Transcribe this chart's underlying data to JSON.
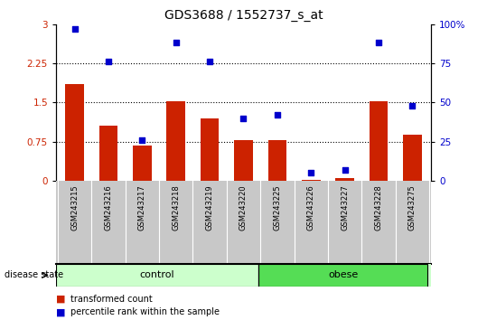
{
  "title": "GDS3688 / 1552737_s_at",
  "samples": [
    "GSM243215",
    "GSM243216",
    "GSM243217",
    "GSM243218",
    "GSM243219",
    "GSM243220",
    "GSM243225",
    "GSM243226",
    "GSM243227",
    "GSM243228",
    "GSM243275"
  ],
  "transformed_count": [
    1.85,
    1.05,
    0.68,
    1.52,
    1.2,
    0.78,
    0.78,
    0.02,
    0.05,
    1.52,
    0.88
  ],
  "percentile_rank": [
    97,
    76,
    26,
    88,
    76,
    40,
    42,
    5,
    7,
    88,
    48
  ],
  "bar_color": "#cc2200",
  "dot_color": "#0000cc",
  "ylim_left": [
    0,
    3
  ],
  "ylim_right": [
    0,
    100
  ],
  "yticks_left": [
    0,
    0.75,
    1.5,
    2.25,
    3
  ],
  "yticks_right": [
    0,
    25,
    50,
    75,
    100
  ],
  "ytick_labels_left": [
    "0",
    "0.75",
    "1.5",
    "2.25",
    "3"
  ],
  "ytick_labels_right": [
    "0",
    "25",
    "50",
    "75",
    "100%"
  ],
  "hlines": [
    0.75,
    1.5,
    2.25
  ],
  "n_control": 6,
  "n_obese": 5,
  "control_label": "control",
  "obese_label": "obese",
  "disease_state_label": "disease state",
  "legend_bar_label": "transformed count",
  "legend_dot_label": "percentile rank within the sample",
  "control_color": "#ccffcc",
  "obese_color": "#55dd55",
  "xticklabel_area_color": "#c8c8c8",
  "background_color": "#ffffff",
  "title_fontsize": 10,
  "tick_fontsize": 7.5,
  "label_fontsize": 7,
  "bar_width": 0.55
}
